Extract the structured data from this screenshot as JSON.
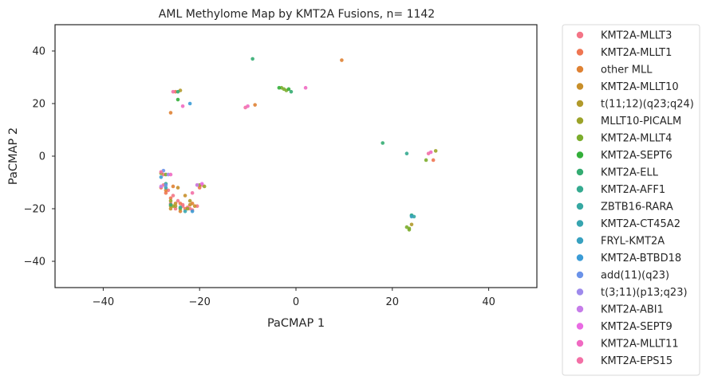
{
  "chart_data": {
    "type": "scatter",
    "title": "AML Methylome Map by KMT2A Fusions, n= 1142",
    "xlabel": "PaCMAP 1",
    "ylabel": "PaCMAP 2",
    "xlim": [
      -50,
      50
    ],
    "ylim": [
      -50,
      50
    ],
    "xticks": [
      -40,
      -20,
      0,
      20,
      40
    ],
    "yticks": [
      -40,
      -20,
      0,
      20,
      40
    ],
    "xtick_labels": [
      "−40",
      "−20",
      "0",
      "20",
      "40"
    ],
    "ytick_labels": [
      "−40",
      "−20",
      "0",
      "20",
      "40"
    ],
    "grid": false,
    "legend_position": "outside-right",
    "series": [
      {
        "name": "KMT2A-MLLT3",
        "color": "#f37587",
        "points": [
          [
            -27.5,
            -11
          ],
          [
            -26.5,
            -13
          ],
          [
            -25.5,
            -15
          ],
          [
            -24.5,
            -17
          ],
          [
            -23.5,
            -18.5
          ],
          [
            -22.5,
            -19.5
          ],
          [
            -21.5,
            -20.5
          ],
          [
            -20.5,
            -19
          ],
          [
            -19.5,
            -11
          ],
          [
            -20.5,
            -11
          ],
          [
            -27.5,
            -7
          ],
          [
            -23.5,
            -19
          ],
          [
            -22,
            -20
          ],
          [
            -25,
            -20
          ],
          [
            -26,
            -18
          ]
        ]
      },
      {
        "name": "KMT2A-MLLT1",
        "color": "#ef7652",
        "points": [
          [
            -28,
            -12
          ],
          [
            -26,
            -16
          ],
          [
            -24,
            -18
          ],
          [
            -20,
            -12
          ],
          [
            28.5,
            -1.5
          ],
          [
            -25,
            24.5
          ],
          [
            -23,
            -20
          ],
          [
            -27,
            -14
          ]
        ]
      },
      {
        "name": "other MLL",
        "color": "#df8234",
        "points": [
          [
            9.5,
            36.5
          ],
          [
            -8.5,
            19.5
          ],
          [
            -26,
            16.5
          ],
          [
            -24,
            -21
          ],
          [
            -27,
            -13
          ],
          [
            -21.5,
            -18
          ],
          [
            -25.5,
            -11.5
          ]
        ]
      },
      {
        "name": "KMT2A-MLLT10",
        "color": "#c88f2a",
        "points": [
          [
            -25,
            -18
          ],
          [
            -23,
            -15
          ],
          [
            -21,
            -19
          ],
          [
            -26,
            -20
          ],
          [
            -24.5,
            -12
          ],
          [
            -22,
            -18.5
          ]
        ]
      },
      {
        "name": "t(11;12)(q23;q24)",
        "color": "#b19a2b",
        "points": [
          [
            -24,
            25
          ],
          [
            -25,
            -19
          ],
          [
            -22,
            -17
          ],
          [
            24,
            -26
          ],
          [
            -26,
            -19
          ]
        ]
      },
      {
        "name": "MLLT10-PICALM",
        "color": "#9ca329",
        "points": [
          [
            -28,
            -6.5
          ],
          [
            -25.5,
            -19
          ],
          [
            -19,
            -11.5
          ],
          [
            29,
            2
          ],
          [
            -22.5,
            -20
          ],
          [
            -26,
            -17
          ],
          [
            -20,
            -11
          ]
        ]
      },
      {
        "name": "KMT2A-MLLT4",
        "color": "#7cad2e",
        "points": [
          [
            -2.5,
            25.5
          ],
          [
            -2,
            25
          ],
          [
            23.5,
            -27.5
          ],
          [
            23.5,
            -28
          ],
          [
            27,
            -1.5
          ],
          [
            -24,
            -20
          ],
          [
            -27,
            -7
          ],
          [
            23,
            -27
          ],
          [
            -3,
            26
          ]
        ]
      },
      {
        "name": "KMT2A-SEPT6",
        "color": "#34af3a",
        "points": [
          [
            -3.5,
            26
          ],
          [
            -24.5,
            21.5
          ],
          [
            -1.5,
            25.5
          ]
        ]
      },
      {
        "name": "KMT2A-ELL",
        "color": "#34ac72",
        "points": [
          [
            -9,
            37
          ],
          [
            -24.5,
            24.5
          ],
          [
            -1,
            24.5
          ],
          [
            18,
            5
          ],
          [
            -26,
            -18.5
          ],
          [
            24,
            -22.5
          ]
        ]
      },
      {
        "name": "KMT2A-AFF1",
        "color": "#35aa90",
        "points": [
          [
            23,
            1
          ],
          [
            24,
            -22.5
          ],
          [
            -27,
            -10.5
          ],
          [
            -24,
            -19.5
          ]
        ]
      },
      {
        "name": "ZBTB16-RARA",
        "color": "#36a8a2",
        "points": [
          [
            24.5,
            -23
          ]
        ]
      },
      {
        "name": "KMT2A-CT45A2",
        "color": "#37a5b0",
        "points": [
          [
            -27,
            -12
          ],
          [
            -23,
            -21
          ]
        ]
      },
      {
        "name": "FRYL-KMT2A",
        "color": "#38a1c0",
        "points": [
          [
            24,
            -23
          ]
        ]
      },
      {
        "name": "KMT2A-BTBD18",
        "color": "#3b9cd6",
        "points": [
          [
            -22,
            20
          ],
          [
            -28,
            -8
          ],
          [
            -21.5,
            -21
          ]
        ]
      },
      {
        "name": "add(11)(q23)",
        "color": "#6b93e9",
        "points": [
          [
            -27.5,
            -5.5
          ],
          [
            -27,
            -11
          ]
        ]
      },
      {
        "name": "t(3;11)(p13;q23)",
        "color": "#9e8aec",
        "points": [
          [
            -26.5,
            -7
          ]
        ]
      },
      {
        "name": "KMT2A-ABI1",
        "color": "#c67de9",
        "points": [
          [
            -28,
            -11.5
          ],
          [
            -20.5,
            -11
          ]
        ]
      },
      {
        "name": "KMT2A-SEPT9",
        "color": "#e96be3",
        "points": [
          [
            -19.5,
            -10.5
          ]
        ]
      },
      {
        "name": "KMT2A-MLLT11",
        "color": "#f06ac2",
        "points": [
          [
            -10,
            19
          ],
          [
            2,
            26
          ],
          [
            28,
            1.5
          ],
          [
            -26,
            -7
          ],
          [
            -23.5,
            19
          ]
        ]
      },
      {
        "name": "KMT2A-EPS15",
        "color": "#f370a6",
        "points": [
          [
            -10.5,
            18.5
          ],
          [
            -25.5,
            24.5
          ],
          [
            27.5,
            1
          ],
          [
            -21.5,
            -14
          ],
          [
            -28,
            -6
          ]
        ]
      }
    ]
  }
}
